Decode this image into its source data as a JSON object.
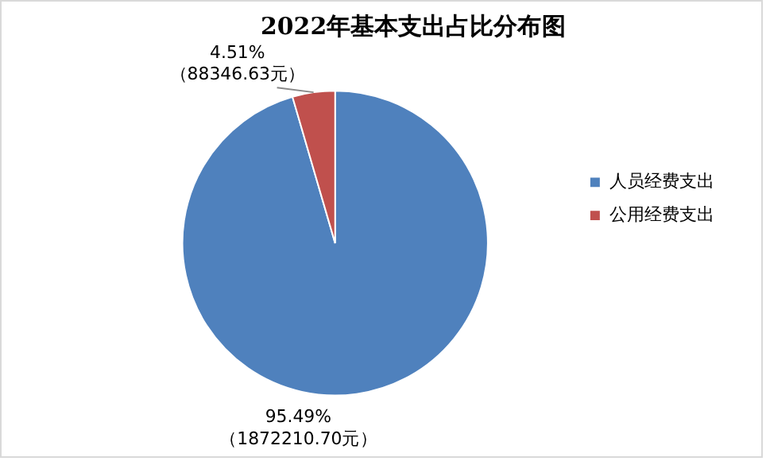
{
  "chart_data": {
    "type": "pie",
    "title": "2022年基本支出占比分布图",
    "categories": [
      "人员经费支出",
      "公用经费支出"
    ],
    "values": [
      1872210.7,
      88346.63
    ],
    "colors": [
      "#4f81bd",
      "#c0504d"
    ],
    "value_labels": [
      "95.49%\n（1872210.70元）",
      "4.51%\n（88346.63元）"
    ],
    "legend": "right"
  }
}
